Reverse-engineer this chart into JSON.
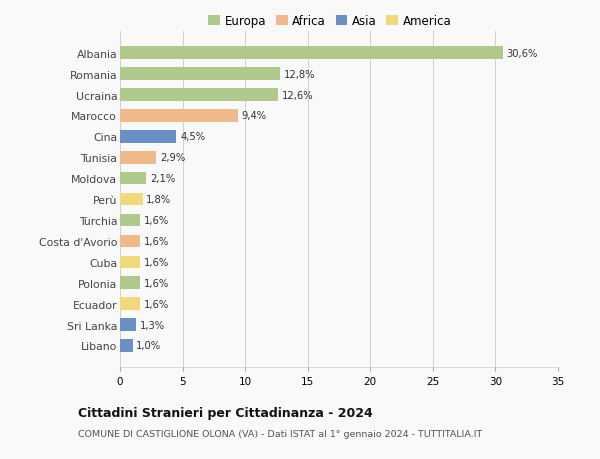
{
  "countries": [
    "Albania",
    "Romania",
    "Ucraina",
    "Marocco",
    "Cina",
    "Tunisia",
    "Moldova",
    "Perù",
    "Turchia",
    "Costa d'Avorio",
    "Cuba",
    "Polonia",
    "Ecuador",
    "Sri Lanka",
    "Libano"
  ],
  "values": [
    30.6,
    12.8,
    12.6,
    9.4,
    4.5,
    2.9,
    2.1,
    1.8,
    1.6,
    1.6,
    1.6,
    1.6,
    1.6,
    1.3,
    1.0
  ],
  "labels": [
    "30,6%",
    "12,8%",
    "12,6%",
    "9,4%",
    "4,5%",
    "2,9%",
    "2,1%",
    "1,8%",
    "1,6%",
    "1,6%",
    "1,6%",
    "1,6%",
    "1,6%",
    "1,3%",
    "1,0%"
  ],
  "colors": [
    "#aec98a",
    "#aec98a",
    "#aec98a",
    "#f0b98a",
    "#6a8fc4",
    "#f0b98a",
    "#aec98a",
    "#f0d97a",
    "#aec98a",
    "#f0b98a",
    "#f0d97a",
    "#aec98a",
    "#f0d97a",
    "#6a8fc4",
    "#6a8fc4"
  ],
  "legend_labels": [
    "Europa",
    "Africa",
    "Asia",
    "America"
  ],
  "legend_colors": [
    "#aec98a",
    "#f0b98a",
    "#6a8fc4",
    "#f0d97a"
  ],
  "title": "Cittadini Stranieri per Cittadinanza - 2024",
  "subtitle": "COMUNE DI CASTIGLIONE OLONA (VA) - Dati ISTAT al 1° gennaio 2024 - TUTTITALIA.IT",
  "xlim": [
    0,
    35
  ],
  "xticks": [
    0,
    5,
    10,
    15,
    20,
    25,
    30,
    35
  ],
  "bg_color": "#f9f9f9",
  "grid_color": "#d0d0d0",
  "bar_height": 0.6
}
